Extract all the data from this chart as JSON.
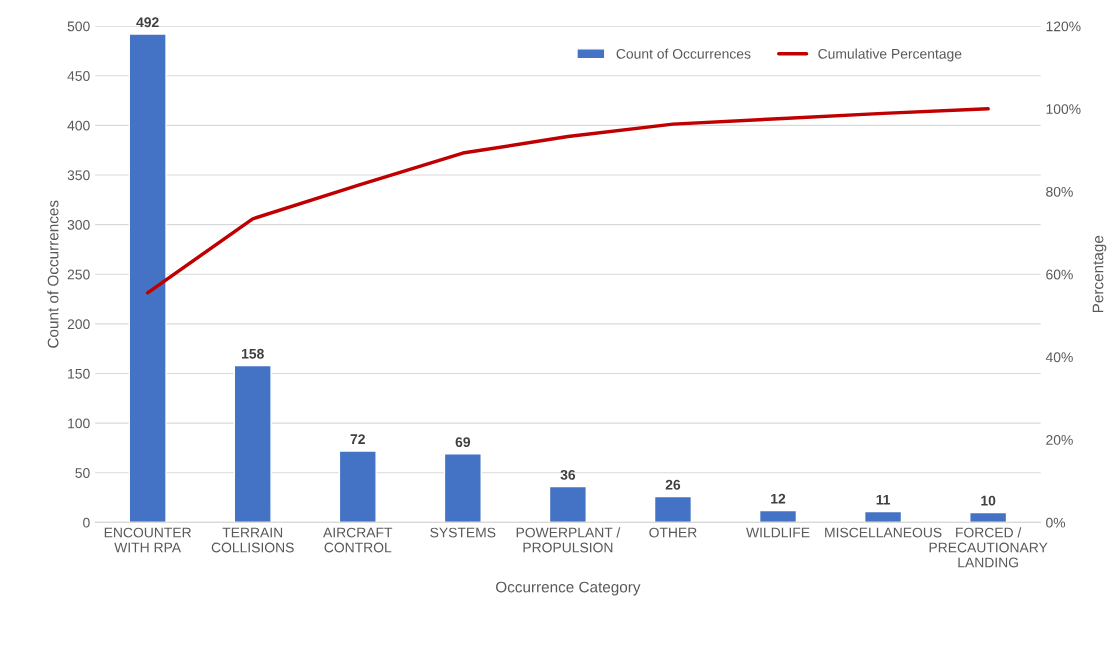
{
  "chart_data": {
    "type": "bar",
    "xlabel": "Occurrence Category",
    "ylabel": "Count of Occurrences",
    "y2label": "Percentage",
    "categories": [
      "ENCOUNTER\nWITH RPA",
      "TERRAIN\nCOLLISIONS",
      "AIRCRAFT\nCONTROL",
      "SYSTEMS",
      "POWERPLANT /\nPROPULSION",
      "OTHER",
      "WILDLIFE",
      "MISCELLANEOUS",
      "FORCED /\nPRECAUTIONARY\nLANDING"
    ],
    "series": [
      {
        "name": "Count of Occurrences",
        "color": "#4472c4",
        "values": [
          492,
          158,
          72,
          69,
          36,
          26,
          12,
          11,
          10
        ],
        "data_labels": true
      },
      {
        "name": "Cumulative Percentage",
        "type": "line",
        "axis": "y2",
        "color": "#c00000",
        "values": [
          55.5,
          73.4,
          81.5,
          89.3,
          93.3,
          96.3,
          97.6,
          98.9,
          100
        ],
        "marker": "none"
      }
    ],
    "ylim": [
      0,
      500
    ],
    "yticks": [
      0,
      50,
      100,
      150,
      200,
      250,
      300,
      350,
      400,
      450,
      500
    ],
    "y2lim": [
      0,
      120
    ],
    "y2ticks": [
      {
        "value": 0,
        "label": "0%"
      },
      {
        "value": 20,
        "label": "20%"
      },
      {
        "value": 40,
        "label": "40%"
      },
      {
        "value": 60,
        "label": "60%"
      },
      {
        "value": 80,
        "label": "80%"
      },
      {
        "value": 100,
        "label": "100%"
      },
      {
        "value": 120,
        "label": "120%"
      }
    ],
    "grid": "y",
    "legend": "top right"
  }
}
